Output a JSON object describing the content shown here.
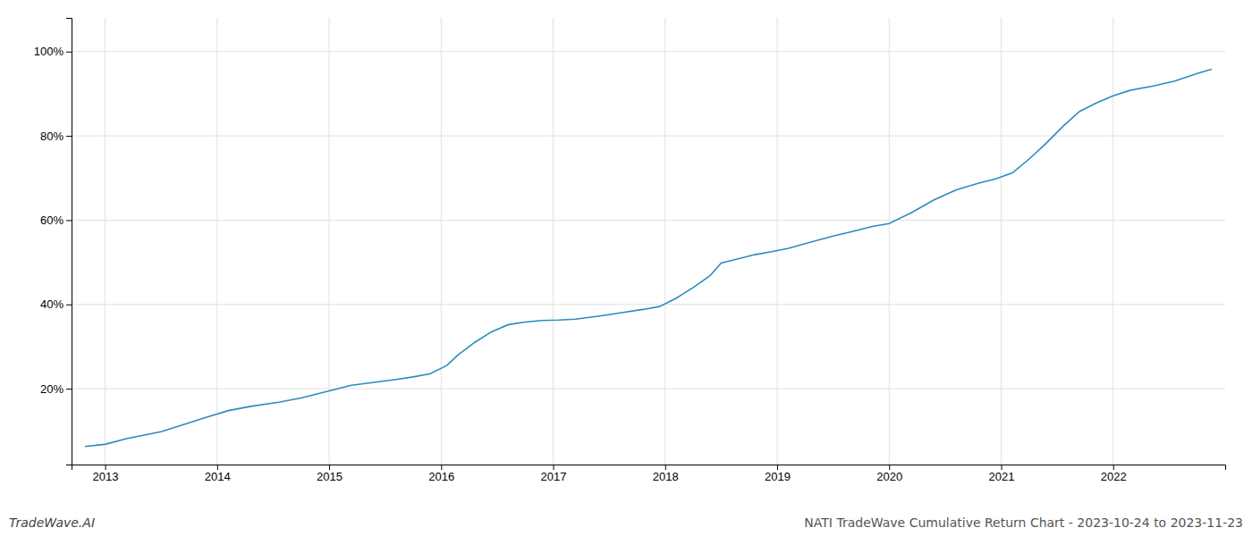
{
  "chart_data": {
    "type": "line",
    "title": "NATI TradeWave Cumulative Return Chart - 2023-10-24 to 2023-11-23",
    "annotations": [
      "TradeWave.AI"
    ],
    "x": [
      2012.82,
      2013.0,
      2013.2,
      2013.5,
      2013.7,
      2013.9,
      2014.1,
      2014.3,
      2014.55,
      2014.75,
      2014.9,
      2015.05,
      2015.2,
      2015.4,
      2015.6,
      2015.75,
      2015.9,
      2016.05,
      2016.15,
      2016.3,
      2016.45,
      2016.6,
      2016.75,
      2016.9,
      2017.05,
      2017.2,
      2017.4,
      2017.6,
      2017.8,
      2017.95,
      2018.1,
      2018.25,
      2018.4,
      2018.5,
      2018.65,
      2018.8,
      2018.95,
      2019.1,
      2019.3,
      2019.5,
      2019.7,
      2019.85,
      2020.0,
      2020.2,
      2020.4,
      2020.6,
      2020.8,
      2020.95,
      2021.1,
      2021.25,
      2021.4,
      2021.55,
      2021.7,
      2021.85,
      2022.0,
      2022.15,
      2022.35,
      2022.55,
      2022.75,
      2022.88
    ],
    "values": [
      0.063,
      0.068,
      0.082,
      0.098,
      0.115,
      0.132,
      0.148,
      0.158,
      0.168,
      0.178,
      0.188,
      0.198,
      0.208,
      0.215,
      0.222,
      0.228,
      0.235,
      0.255,
      0.28,
      0.31,
      0.335,
      0.352,
      0.358,
      0.362,
      0.363,
      0.365,
      0.372,
      0.38,
      0.388,
      0.395,
      0.415,
      0.44,
      0.468,
      0.498,
      0.508,
      0.518,
      0.525,
      0.533,
      0.548,
      0.562,
      0.575,
      0.585,
      0.592,
      0.618,
      0.648,
      0.672,
      0.688,
      0.698,
      0.712,
      0.745,
      0.782,
      0.822,
      0.858,
      0.878,
      0.895,
      0.908,
      0.918,
      0.93,
      0.948,
      0.958
    ],
    "color": "#2b8cbe",
    "xlim": [
      2012.7,
      2023.0
    ],
    "xticks": [
      2013,
      2014,
      2015,
      2016,
      2017,
      2018,
      2019,
      2020,
      2021,
      2022
    ],
    "ylim": [
      0.02,
      1.08
    ],
    "yticks": [
      {
        "value": 0.2,
        "label": "20%"
      },
      {
        "value": 0.4,
        "label": "40%"
      },
      {
        "value": 0.6,
        "label": "60%"
      },
      {
        "value": 0.8,
        "label": "80%"
      },
      {
        "value": 1.0,
        "label": "100%"
      }
    ],
    "grid": true
  }
}
